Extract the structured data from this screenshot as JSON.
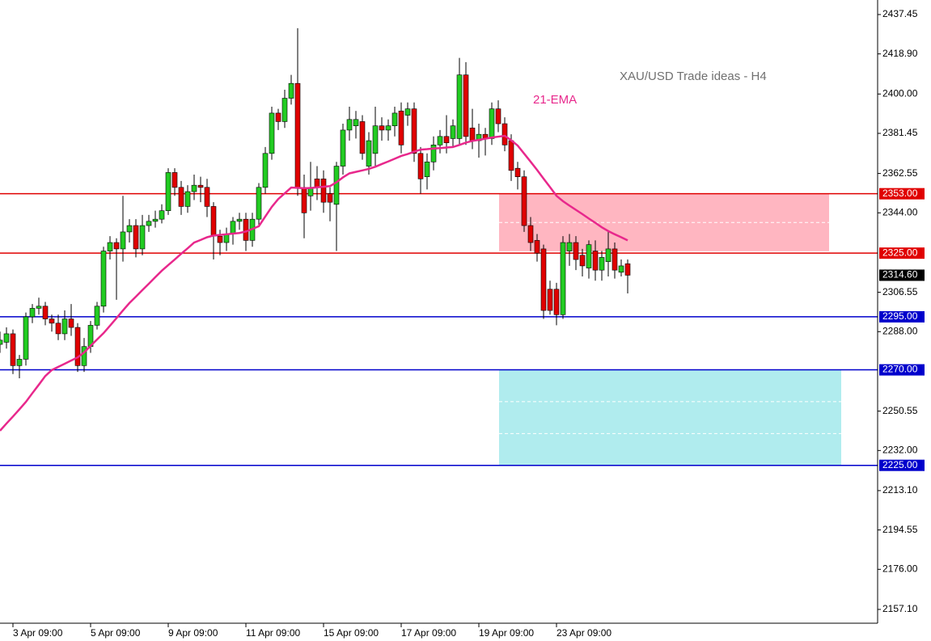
{
  "chart_data": {
    "type": "candlestick",
    "title": "XAU/USD Trade ideas - H4",
    "categories": [
      null,
      null,
      "3 Apr 09:00",
      null,
      null,
      null,
      null,
      null,
      null,
      null,
      null,
      null,
      null,
      null,
      "5 Apr 09:00",
      null,
      null,
      null,
      null,
      null,
      null,
      null,
      null,
      null,
      null,
      null,
      "9 Apr 09:00",
      null,
      null,
      null,
      null,
      null,
      null,
      null,
      null,
      null,
      null,
      null,
      "11 Apr 09:00",
      null,
      null,
      null,
      null,
      null,
      null,
      null,
      null,
      null,
      null,
      null,
      "15 Apr 09:00",
      null,
      null,
      null,
      null,
      null,
      null,
      null,
      null,
      null,
      null,
      null,
      "17 Apr 09:00",
      null,
      null,
      null,
      null,
      null,
      null,
      null,
      null,
      null,
      null,
      null,
      "19 Apr 09:00",
      null,
      null,
      null,
      null,
      null,
      null,
      null,
      null,
      null,
      null,
      null,
      "23 Apr 09:00",
      null,
      null,
      null,
      null,
      null,
      null,
      null,
      null,
      null,
      null,
      null
    ],
    "open": [
      2282,
      2283,
      2287,
      2272,
      2275,
      2295,
      2299,
      2300,
      2294,
      2292,
      2287,
      2294,
      2290,
      2272,
      2281,
      2291,
      2300,
      2326,
      2330,
      2327,
      2335,
      2338,
      2327,
      2338,
      2340,
      2341,
      2345,
      2363,
      2356,
      2347,
      2354,
      2357,
      2356,
      2347,
      2333,
      2330,
      2334,
      2340,
      2341,
      2331,
      2341,
      2356,
      2372,
      2391,
      2387,
      2398,
      2405,
      2356,
      2352,
      2360,
      2360,
      2353,
      2348,
      2366,
      2383,
      2385,
      2387,
      2366,
      2372,
      2385,
      2383,
      2385,
      2392,
      2390,
      2393,
      2372,
      2361,
      2368,
      2376,
      2380,
      2379,
      2379,
      2409,
      2384,
      2378,
      2381,
      2379,
      2393,
      2386,
      2378,
      2365,
      2361,
      2338,
      2331,
      2327,
      2308,
      2308,
      2296,
      2326,
      2330,
      2324,
      2318,
      2326,
      2317,
      2321,
      2327,
      2316,
      2320
    ],
    "high": [
      2288,
      2290,
      2289,
      2277,
      2297,
      2301,
      2304,
      2302,
      2296,
      2296,
      2298,
      2301,
      2292,
      2285,
      2293,
      2302,
      2328,
      2333,
      2332,
      2352,
      2341,
      2341,
      2343,
      2343,
      2345,
      2348,
      2365,
      2365,
      2359,
      2357,
      2362,
      2361,
      2360,
      2349,
      2336,
      2337,
      2342,
      2344,
      2344,
      2344,
      2358,
      2375,
      2394,
      2393,
      2402,
      2409,
      2431,
      2362,
      2368,
      2366,
      2364,
      2356,
      2368,
      2386,
      2394,
      2392,
      2390,
      2382,
      2394,
      2389,
      2388,
      2394,
      2396,
      2396,
      2396,
      2375,
      2372,
      2380,
      2383,
      2390,
      2388,
      2417,
      2415,
      2393,
      2386,
      2384,
      2396,
      2397,
      2389,
      2381,
      2368,
      2364,
      2342,
      2334,
      2329,
      2312,
      2311,
      2333,
      2334,
      2333,
      2327,
      2331,
      2331,
      2326,
      2335,
      2330,
      2322,
      2322
    ],
    "low": [
      2278,
      2280,
      2268,
      2266,
      2272,
      2292,
      2296,
      2291,
      2288,
      2284,
      2284,
      2286,
      2269,
      2269,
      2278,
      2289,
      2297,
      2322,
      2303,
      2321,
      2330,
      2323,
      2324,
      2335,
      2337,
      2339,
      2343,
      2352,
      2343,
      2344,
      2350,
      2349,
      2342,
      2322,
      2324,
      2326,
      2329,
      2336,
      2326,
      2328,
      2338,
      2353,
      2369,
      2383,
      2384,
      2395,
      2352,
      2332,
      2345,
      2350,
      2344,
      2340,
      2326,
      2362,
      2378,
      2379,
      2369,
      2362,
      2366,
      2378,
      2378,
      2380,
      2372,
      2385,
      2368,
      2353,
      2355,
      2364,
      2372,
      2372,
      2375,
      2376,
      2376,
      2374,
      2370,
      2371,
      2376,
      2382,
      2373,
      2359,
      2355,
      2335,
      2326,
      2321,
      2294,
      2296,
      2291,
      2294,
      2319,
      2317,
      2314,
      2313,
      2312,
      2312,
      2314,
      2313,
      2314,
      2306
    ],
    "close": [
      2284,
      2287,
      2272,
      2275,
      2295,
      2299,
      2300,
      2294,
      2292,
      2287,
      2294,
      2290,
      2272,
      2281,
      2291,
      2300,
      2326,
      2330,
      2327,
      2335,
      2338,
      2327,
      2338,
      2340,
      2341,
      2345,
      2363,
      2356,
      2347,
      2354,
      2357,
      2356,
      2347,
      2333,
      2330,
      2334,
      2340,
      2341,
      2331,
      2341,
      2356,
      2372,
      2391,
      2387,
      2398,
      2405,
      2356,
      2344,
      2356,
      2356,
      2349,
      2349,
      2366,
      2383,
      2388,
      2388,
      2372,
      2378,
      2385,
      2383,
      2385,
      2391,
      2376,
      2393,
      2372,
      2360,
      2368,
      2376,
      2380,
      2377,
      2385,
      2409,
      2380,
      2378,
      2381,
      2379,
      2393,
      2386,
      2376,
      2364,
      2361,
      2338,
      2330,
      2325,
      2298,
      2298,
      2296,
      2330,
      2330,
      2322,
      2319,
      2329,
      2317,
      2323,
      2327,
      2317,
      2319,
      2314.6
    ],
    "up_color": "#22cc22",
    "down_color": "#e00000",
    "last_price_label": "2314.60",
    "ema": {
      "name": "21-EMA",
      "color": "#e8288c",
      "values": [
        2241.3,
        2244.7,
        2248.0,
        2251.4,
        2254.9,
        2259.0,
        2263.0,
        2267.1,
        2269.9,
        2271.4,
        2272.9,
        2274.4,
        2275.9,
        2278.2,
        2281.3,
        2284.3,
        2287.3,
        2290.8,
        2294.4,
        2298.0,
        2301.5,
        2304.5,
        2307.6,
        2310.6,
        2313.7,
        2316.7,
        2319.4,
        2322.0,
        2324.7,
        2327.3,
        2330.0,
        2331.2,
        2332.5,
        2333.3,
        2333.6,
        2333.9,
        2334.2,
        2334.5,
        2335.2,
        2336.4,
        2337.7,
        2342.3,
        2346.8,
        2350.5,
        2353.2,
        2355.9,
        2355.8,
        2355.6,
        2355.7,
        2356.0,
        2356.3,
        2356.6,
        2358.4,
        2360.7,
        2362.6,
        2363.3,
        2364.0,
        2364.7,
        2365.7,
        2367.0,
        2368.2,
        2369.5,
        2370.8,
        2371.7,
        2372.8,
        2373.8,
        2374.0,
        2374.3,
        2374.5,
        2374.8,
        2375.0,
        2376.0,
        2377.1,
        2377.9,
        2378.4,
        2378.9,
        2379.5,
        2379.9,
        2380.3,
        2378.2,
        2375.7,
        2371.9,
        2368.1,
        2364.2,
        2360.1,
        2356.1,
        2352.0,
        2349.5,
        2347.4,
        2345.4,
        2343.4,
        2341.3,
        2339.3,
        2337.2,
        2335.4,
        2333.9,
        2332.5,
        2331.0
      ]
    },
    "levels": [
      {
        "value": 2353,
        "label": "2353.00",
        "color": "#e00000"
      },
      {
        "value": 2325,
        "label": "2325.00",
        "color": "#e00000"
      },
      {
        "value": 2295,
        "label": "2295.00",
        "color": "#0000cc"
      },
      {
        "value": 2270,
        "label": "2270.00",
        "color": "#0000cc"
      },
      {
        "value": 2225,
        "label": "2225.00",
        "color": "#0000cc"
      }
    ],
    "zones": [
      {
        "ymin": 2325.9,
        "ymax": 2353,
        "color": "#ffb6c1"
      },
      {
        "ymin": 2225,
        "ymax": 2270,
        "color": "#b0ecee"
      }
    ],
    "ylim": [
      2150.6,
      2444.3
    ],
    "yticks": [
      {
        "value": 2437.45,
        "label": "2437.45"
      },
      {
        "value": 2418.9,
        "label": "2418.90"
      },
      {
        "value": 2400,
        "label": "2400.00"
      },
      {
        "value": 2381.45,
        "label": "2381.45"
      },
      {
        "value": 2362.55,
        "label": "2362.55"
      },
      {
        "value": 2344,
        "label": "2344.00"
      },
      {
        "value": 2306.55,
        "label": "2306.55"
      },
      {
        "value": 2288,
        "label": "2288.00"
      },
      {
        "value": 2250.55,
        "label": "2250.55"
      },
      {
        "value": 2232,
        "label": "2232.00"
      },
      {
        "value": 2213.1,
        "label": "2213.10"
      },
      {
        "value": 2194.55,
        "label": "2194.55"
      },
      {
        "value": 2176,
        "label": "2176.00"
      },
      {
        "value": 2157.1,
        "label": "2157.10"
      }
    ],
    "grid": false
  }
}
